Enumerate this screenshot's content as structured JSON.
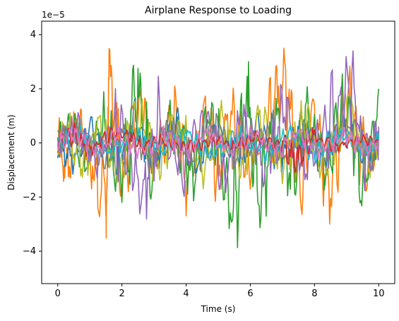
{
  "chart_data": {
    "type": "line",
    "title": "Airplane Response to Loading",
    "xlabel": "Time (s)",
    "ylabel": "Displacement (m)",
    "y_offset_label": "1e−5",
    "xlim": [
      -0.5,
      10.5
    ],
    "ylim": [
      -5.2,
      4.5
    ],
    "x_ticks": [
      0,
      2,
      4,
      6,
      8,
      10
    ],
    "x_tick_labels": [
      "0",
      "2",
      "4",
      "6",
      "8",
      "10"
    ],
    "y_ticks": [
      -4,
      -2,
      0,
      2,
      4
    ],
    "y_tick_labels": [
      "−4",
      "−2",
      "0",
      "2",
      "4"
    ],
    "y_unit_scale": 1e-05,
    "grid": false,
    "legend": "none",
    "series": [
      {
        "color": "#ff7f0e",
        "samples": [
          [
            0,
            0
          ],
          [
            0.3,
            -1.9
          ],
          [
            0.6,
            1.5
          ],
          [
            1.0,
            -0.8
          ],
          [
            1.5,
            -3.3
          ],
          [
            1.6,
            3.7
          ],
          [
            2.0,
            -2.1
          ],
          [
            2.6,
            2.6
          ],
          [
            3.0,
            -1.5
          ],
          [
            3.6,
            2.2
          ],
          [
            4.0,
            -2.6
          ],
          [
            4.6,
            1.9
          ],
          [
            5.0,
            -2.4
          ],
          [
            5.4,
            2.0
          ],
          [
            6.0,
            -1.8
          ],
          [
            6.6,
            1.7
          ],
          [
            7.1,
            3.9
          ],
          [
            7.5,
            -2.8
          ],
          [
            8.0,
            1.2
          ],
          [
            8.5,
            -3.0
          ],
          [
            9.1,
            3.5
          ],
          [
            9.6,
            -1.6
          ],
          [
            10.0,
            0.5
          ]
        ]
      },
      {
        "color": "#2ca02c",
        "samples": [
          [
            0,
            0
          ],
          [
            0.4,
            1.2
          ],
          [
            0.9,
            -1.5
          ],
          [
            1.4,
            1.4
          ],
          [
            2.0,
            -2.5
          ],
          [
            2.5,
            3.8
          ],
          [
            2.9,
            -1.8
          ],
          [
            3.5,
            1.6
          ],
          [
            4.2,
            -2.2
          ],
          [
            4.8,
            2.0
          ],
          [
            5.45,
            -4.6
          ],
          [
            5.9,
            2.2
          ],
          [
            6.3,
            -3.9
          ],
          [
            6.8,
            1.9
          ],
          [
            7.3,
            -2.5
          ],
          [
            7.8,
            1.6
          ],
          [
            8.4,
            -2.0
          ],
          [
            9.0,
            2.9
          ],
          [
            9.5,
            -2.7
          ],
          [
            10.0,
            2.0
          ]
        ]
      },
      {
        "color": "#1f77b4",
        "samples": [
          [
            0,
            0
          ],
          [
            0.5,
            -1.0
          ],
          [
            1.1,
            1.0
          ],
          [
            1.8,
            -1.2
          ],
          [
            2.4,
            1.5
          ],
          [
            3.0,
            -1.1
          ],
          [
            3.7,
            1.0
          ],
          [
            4.4,
            -1.3
          ],
          [
            5.0,
            1.1
          ],
          [
            5.6,
            -1.2
          ],
          [
            6.2,
            1.0
          ],
          [
            6.9,
            -1.1
          ],
          [
            7.6,
            1.2
          ],
          [
            8.2,
            -1.0
          ],
          [
            8.9,
            1.1
          ],
          [
            9.6,
            -1.0
          ],
          [
            10.0,
            0.3
          ]
        ]
      },
      {
        "color": "#bcbd22",
        "samples": [
          [
            0,
            0
          ],
          [
            0.3,
            0.9
          ],
          [
            0.8,
            -1.4
          ],
          [
            1.3,
            1.1
          ],
          [
            1.9,
            -1.7
          ],
          [
            2.5,
            1.8
          ],
          [
            3.1,
            -1.5
          ],
          [
            3.8,
            1.4
          ],
          [
            4.5,
            -1.6
          ],
          [
            5.1,
            1.3
          ],
          [
            5.7,
            -1.8
          ],
          [
            6.3,
            1.5
          ],
          [
            7.0,
            -1.3
          ],
          [
            7.7,
            1.6
          ],
          [
            8.3,
            -1.4
          ],
          [
            9.0,
            1.7
          ],
          [
            9.7,
            -1.2
          ],
          [
            10.0,
            0.4
          ]
        ]
      },
      {
        "color": "#9467bd",
        "samples": [
          [
            0,
            0
          ],
          [
            0.6,
            1.0
          ],
          [
            1.2,
            -1.1
          ],
          [
            1.8,
            1.2
          ],
          [
            2.6,
            -3.7
          ],
          [
            3.2,
            1.4
          ],
          [
            3.9,
            -1.9
          ],
          [
            4.6,
            1.7
          ],
          [
            5.2,
            -2.0
          ],
          [
            5.8,
            1.6
          ],
          [
            6.4,
            -1.4
          ],
          [
            7.1,
            2.3
          ],
          [
            7.7,
            -1.5
          ],
          [
            8.4,
            1.3
          ],
          [
            9.1,
            3.4
          ],
          [
            9.7,
            -1.6
          ],
          [
            10.0,
            0.6
          ]
        ]
      },
      {
        "color": "#7f7f7f",
        "samples": [
          [
            0,
            0
          ],
          [
            0.7,
            0.7
          ],
          [
            1.4,
            -0.9
          ],
          [
            2.1,
            0.8
          ],
          [
            2.8,
            -1.0
          ],
          [
            3.5,
            0.9
          ],
          [
            4.2,
            -0.8
          ],
          [
            4.9,
            1.0
          ],
          [
            5.6,
            -0.9
          ],
          [
            6.3,
            0.7
          ],
          [
            7.0,
            -1.0
          ],
          [
            7.7,
            0.8
          ],
          [
            8.4,
            -0.7
          ],
          [
            9.1,
            0.9
          ],
          [
            9.8,
            -0.8
          ],
          [
            10.0,
            0.2
          ]
        ]
      },
      {
        "color": "#17becf",
        "samples": [
          [
            0,
            0
          ],
          [
            0.8,
            0.5
          ],
          [
            1.6,
            -0.6
          ],
          [
            2.4,
            0.6
          ],
          [
            3.2,
            -0.5
          ],
          [
            4.0,
            0.6
          ],
          [
            4.8,
            -0.6
          ],
          [
            5.6,
            0.5
          ],
          [
            6.4,
            -0.6
          ],
          [
            7.2,
            0.5
          ],
          [
            8.0,
            -0.6
          ],
          [
            8.8,
            0.5
          ],
          [
            9.6,
            -0.5
          ],
          [
            10.0,
            0.1
          ]
        ]
      },
      {
        "color": "#d62728",
        "samples": [
          [
            0,
            0
          ],
          [
            0.5,
            0.6
          ],
          [
            1.0,
            -0.4
          ],
          [
            1.5,
            0.3
          ],
          [
            2.2,
            0.5
          ],
          [
            2.6,
            -0.3
          ],
          [
            3.2,
            0.2
          ],
          [
            4.0,
            -0.3
          ],
          [
            4.8,
            0.2
          ],
          [
            5.5,
            -0.2
          ],
          [
            6.2,
            0.3
          ],
          [
            7.0,
            -0.2
          ],
          [
            7.5,
            -1.0
          ],
          [
            8.0,
            0.4
          ],
          [
            8.6,
            -0.3
          ],
          [
            9.3,
            0.2
          ],
          [
            10.0,
            0.1
          ]
        ]
      },
      {
        "color": "#e377c2",
        "samples": [
          [
            0,
            0
          ],
          [
            0.6,
            0.5
          ],
          [
            1.2,
            -0.6
          ],
          [
            1.9,
            0.5
          ],
          [
            2.6,
            -0.6
          ],
          [
            3.3,
            0.5
          ],
          [
            4.0,
            -0.5
          ],
          [
            4.7,
            0.6
          ],
          [
            5.4,
            -0.6
          ],
          [
            6.1,
            0.5
          ],
          [
            6.8,
            -0.5
          ],
          [
            7.5,
            0.6
          ],
          [
            8.2,
            -0.5
          ],
          [
            8.9,
            0.5
          ],
          [
            9.6,
            -0.4
          ],
          [
            10.0,
            0.1
          ]
        ]
      }
    ]
  }
}
